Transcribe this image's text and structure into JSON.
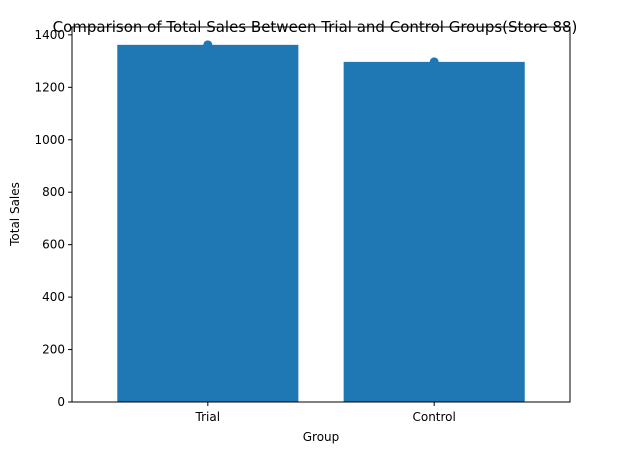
{
  "chart_data": {
    "type": "bar",
    "title": "Comparison of Total Sales Between Trial and Control Groups(Store 88)",
    "xlabel": "Group",
    "ylabel": "Total Sales",
    "categories": [
      "Trial",
      "Control"
    ],
    "values": [
      1362,
      1297
    ],
    "markers": [
      1362,
      1297
    ],
    "ylim": [
      0,
      1430
    ],
    "yticks": [
      0,
      200,
      400,
      600,
      800,
      1000,
      1200,
      1400
    ],
    "grid": false,
    "legend": "none",
    "bar_color": "#1f77b4",
    "marker_color": "#1f77b4"
  }
}
